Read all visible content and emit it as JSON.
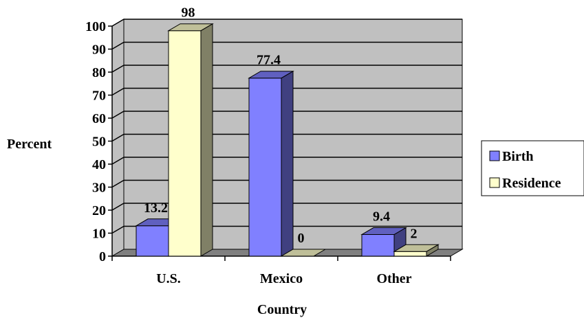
{
  "chart_data": {
    "type": "bar",
    "style": "3d-clustered-column",
    "categories": [
      "U.S.",
      "Mexico",
      "Other"
    ],
    "series": [
      {
        "name": "Birth",
        "values": [
          13.2,
          77.4,
          9.4
        ],
        "color": "#8080ff"
      },
      {
        "name": "Residence",
        "values": [
          98,
          0,
          2
        ],
        "color": "#ffffcc"
      }
    ],
    "data_labels": [
      [
        "13.2",
        "77.4",
        "9.4"
      ],
      [
        "98",
        "0",
        "2"
      ]
    ],
    "xlabel": "Country",
    "ylabel": "Percent",
    "ylim": [
      0,
      100
    ],
    "yticks": [
      0,
      10,
      20,
      30,
      40,
      50,
      60,
      70,
      80,
      90,
      100
    ],
    "grid": true,
    "legend_position": "right",
    "colors": {
      "wall": "#c0c0c0",
      "floor": "#808080",
      "grid": "#000000"
    }
  }
}
